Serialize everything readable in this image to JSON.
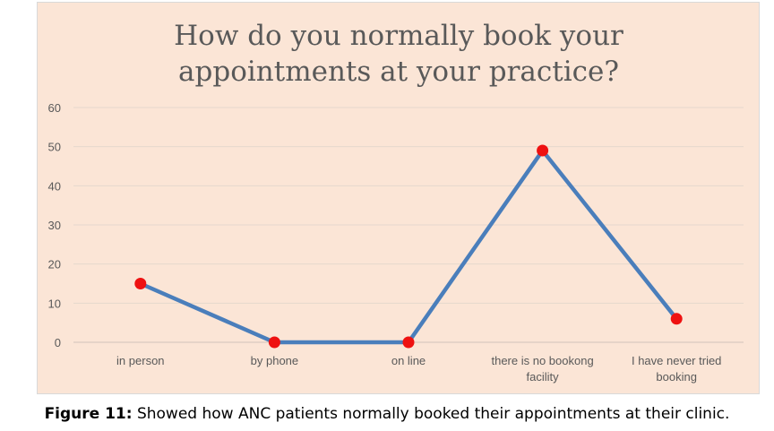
{
  "chart_data": {
    "type": "line",
    "title_line1": "How do you normally book your",
    "title_line2": "appointments at your practice?",
    "categories": [
      [
        "in person"
      ],
      [
        "by phone"
      ],
      [
        "on line"
      ],
      [
        "there is no bookong",
        "facility"
      ],
      [
        "I have never tried",
        "booking"
      ]
    ],
    "series": [
      {
        "values": [
          15,
          0,
          0,
          49,
          6
        ]
      }
    ],
    "ylim": [
      0,
      60
    ],
    "yticks": [
      0,
      10,
      20,
      30,
      40,
      50,
      60
    ],
    "grid": true,
    "line_color": "#4a7ebb",
    "marker_color": "#ee1111",
    "background_color": "#fbe5d6"
  },
  "caption": {
    "label": "Figure 11:",
    "text": " Showed how ANC patients normally booked their appointments at their clinic."
  }
}
